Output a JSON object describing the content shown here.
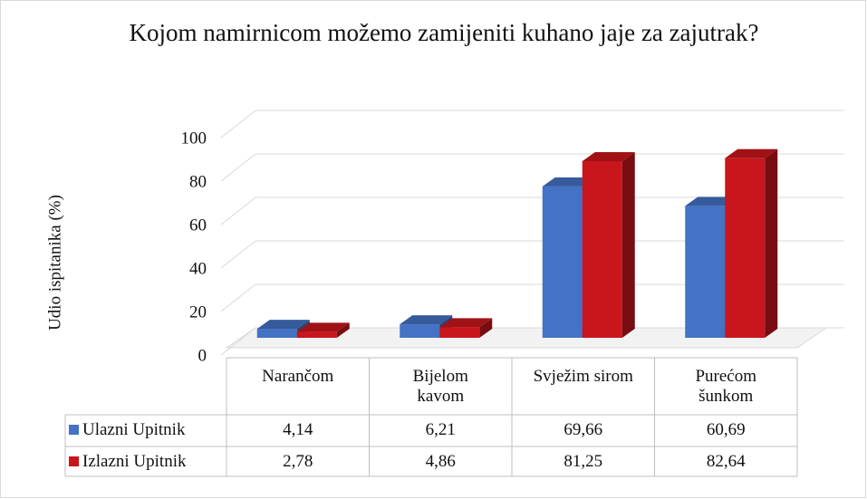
{
  "chart_data": {
    "type": "bar",
    "title": "Kojom namirnicom  možemo zamijeniti kuhano jaje za zajutrak?",
    "y_label": "Udio ispitanika (%)",
    "categories": [
      "Narančom",
      "Bijelom kavom",
      "Svježim sirom",
      "Purećom šunkom"
    ],
    "series": [
      {
        "name": "Ulazni Upitnik",
        "color": "#4472c4",
        "values": [
          4.14,
          6.21,
          69.66,
          60.69
        ],
        "value_labels": [
          "4,14",
          "6,21",
          "69,66",
          "60,69"
        ]
      },
      {
        "name": "Izlazni Upitnik",
        "color": "#c8161c",
        "values": [
          2.78,
          4.86,
          81.25,
          82.64
        ],
        "value_labels": [
          "2,78",
          "4,86",
          "81,25",
          "82,64"
        ]
      }
    ],
    "ylim": [
      0,
      100
    ],
    "yticks": [
      0,
      20,
      40,
      60,
      80,
      100
    ],
    "grid": true
  }
}
